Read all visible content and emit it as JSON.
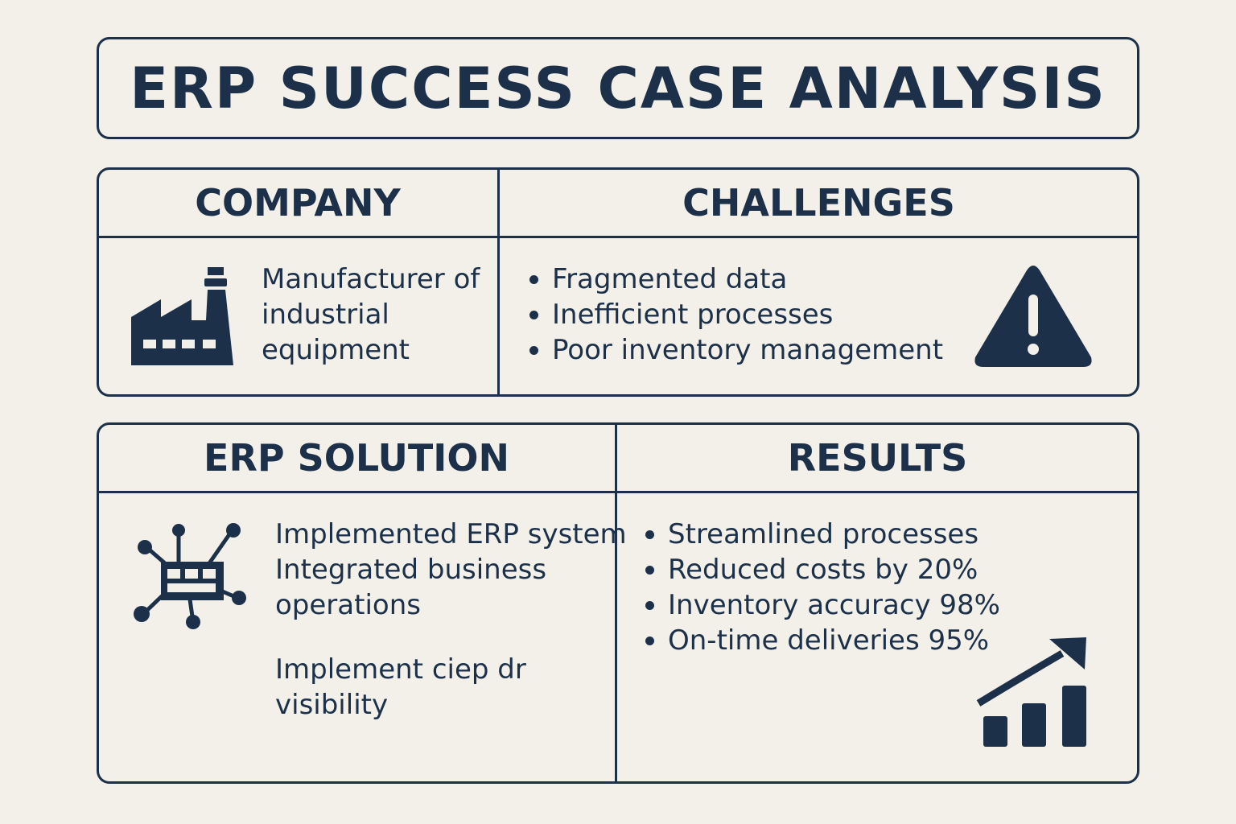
{
  "title": "ERP SUCCESS CASE ANALYSIS",
  "colors": {
    "background": "#f3f0ea",
    "ink": "#1c3149"
  },
  "company": {
    "header": "COMPANY",
    "icon": "factory-icon",
    "lines": [
      "Manufacturer of",
      "industrial",
      "equipment"
    ]
  },
  "challenges": {
    "header": "CHALLENGES",
    "icon": "warning-icon",
    "items": [
      "Fragmented data",
      "Inefficient processes",
      "Poor inventory management"
    ]
  },
  "solution": {
    "header": "ERP SOLUTION",
    "icon": "network-icon",
    "lines": [
      "Implemented ERP system",
      "Integrated business",
      "operations"
    ],
    "lines2": [
      "Implement ciep dr",
      "visibility"
    ]
  },
  "results": {
    "header": "RESULTS",
    "icon": "growth-chart-icon",
    "items": [
      "Streamlined processes",
      "Reduced costs by 20%",
      "Inventory accuracy 98%",
      "On-time deliveries 95%"
    ]
  }
}
